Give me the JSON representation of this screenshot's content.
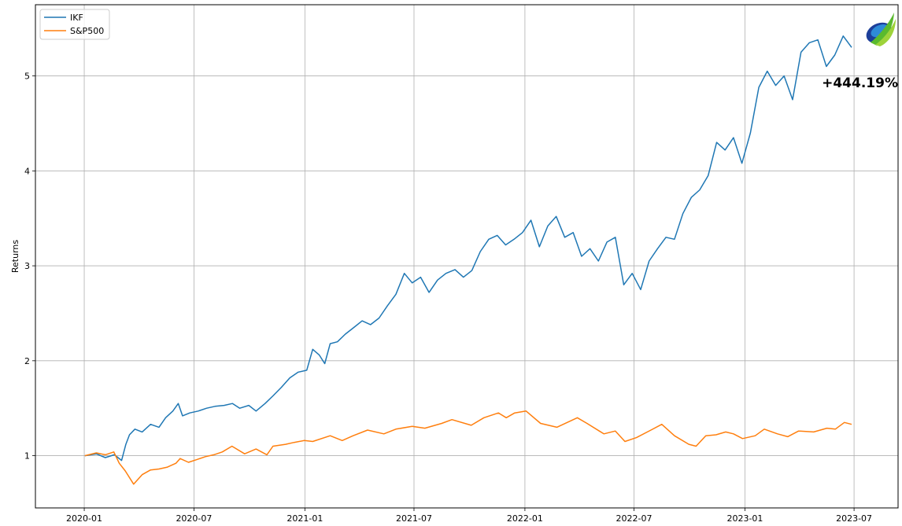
{
  "chart_data": {
    "type": "line",
    "title": "",
    "xlabel": "",
    "ylabel": "Returns",
    "x_type": "date",
    "xlim": [
      "2019-10-12",
      "2023-09-12"
    ],
    "ylim": [
      0.45,
      5.75
    ],
    "x_ticks": [
      "2020-01",
      "2020-07",
      "2021-01",
      "2021-07",
      "2022-01",
      "2022-07",
      "2023-01",
      "2023-07"
    ],
    "y_ticks": [
      1,
      2,
      3,
      4,
      5
    ],
    "grid": true,
    "legend": "top-left",
    "series": [
      {
        "name": "IKF",
        "color": "#1f77b4",
        "points": [
          [
            "2020-01-02",
            1.0
          ],
          [
            "2020-01-21",
            1.02
          ],
          [
            "2020-02-05",
            0.98
          ],
          [
            "2020-02-20",
            1.01
          ],
          [
            "2020-03-03",
            0.95
          ],
          [
            "2020-03-10",
            1.12
          ],
          [
            "2020-03-16",
            1.22
          ],
          [
            "2020-03-25",
            1.28
          ],
          [
            "2020-04-06",
            1.25
          ],
          [
            "2020-04-20",
            1.33
          ],
          [
            "2020-05-04",
            1.3
          ],
          [
            "2020-05-15",
            1.4
          ],
          [
            "2020-05-27",
            1.47
          ],
          [
            "2020-06-05",
            1.55
          ],
          [
            "2020-06-12",
            1.42
          ],
          [
            "2020-06-24",
            1.45
          ],
          [
            "2020-07-08",
            1.47
          ],
          [
            "2020-07-22",
            1.5
          ],
          [
            "2020-08-05",
            1.52
          ],
          [
            "2020-08-20",
            1.53
          ],
          [
            "2020-09-03",
            1.55
          ],
          [
            "2020-09-15",
            1.5
          ],
          [
            "2020-09-30",
            1.53
          ],
          [
            "2020-10-12",
            1.47
          ],
          [
            "2020-10-27",
            1.55
          ],
          [
            "2020-11-09",
            1.63
          ],
          [
            "2020-11-23",
            1.72
          ],
          [
            "2020-12-07",
            1.82
          ],
          [
            "2020-12-21",
            1.88
          ],
          [
            "2021-01-04",
            1.9
          ],
          [
            "2021-01-14",
            2.12
          ],
          [
            "2021-01-25",
            2.06
          ],
          [
            "2021-02-03",
            1.97
          ],
          [
            "2021-02-12",
            2.18
          ],
          [
            "2021-02-24",
            2.2
          ],
          [
            "2021-03-09",
            2.28
          ],
          [
            "2021-03-23",
            2.35
          ],
          [
            "2021-04-06",
            2.42
          ],
          [
            "2021-04-20",
            2.38
          ],
          [
            "2021-05-04",
            2.45
          ],
          [
            "2021-05-18",
            2.58
          ],
          [
            "2021-06-01",
            2.7
          ],
          [
            "2021-06-15",
            2.92
          ],
          [
            "2021-06-28",
            2.82
          ],
          [
            "2021-07-12",
            2.88
          ],
          [
            "2021-07-26",
            2.72
          ],
          [
            "2021-08-09",
            2.85
          ],
          [
            "2021-08-23",
            2.92
          ],
          [
            "2021-09-07",
            2.96
          ],
          [
            "2021-09-21",
            2.88
          ],
          [
            "2021-10-05",
            2.95
          ],
          [
            "2021-10-19",
            3.15
          ],
          [
            "2021-11-02",
            3.28
          ],
          [
            "2021-11-16",
            3.32
          ],
          [
            "2021-11-30",
            3.22
          ],
          [
            "2021-12-14",
            3.28
          ],
          [
            "2021-12-28",
            3.35
          ],
          [
            "2022-01-11",
            3.48
          ],
          [
            "2022-01-25",
            3.2
          ],
          [
            "2022-02-08",
            3.42
          ],
          [
            "2022-02-22",
            3.52
          ],
          [
            "2022-03-08",
            3.3
          ],
          [
            "2022-03-22",
            3.35
          ],
          [
            "2022-04-05",
            3.1
          ],
          [
            "2022-04-19",
            3.18
          ],
          [
            "2022-05-03",
            3.05
          ],
          [
            "2022-05-17",
            3.25
          ],
          [
            "2022-05-31",
            3.3
          ],
          [
            "2022-06-14",
            2.8
          ],
          [
            "2022-06-28",
            2.92
          ],
          [
            "2022-07-12",
            2.75
          ],
          [
            "2022-07-26",
            3.05
          ],
          [
            "2022-08-09",
            3.18
          ],
          [
            "2022-08-23",
            3.3
          ],
          [
            "2022-09-06",
            3.28
          ],
          [
            "2022-09-20",
            3.55
          ],
          [
            "2022-10-04",
            3.72
          ],
          [
            "2022-10-18",
            3.8
          ],
          [
            "2022-11-01",
            3.95
          ],
          [
            "2022-11-15",
            4.3
          ],
          [
            "2022-11-29",
            4.22
          ],
          [
            "2022-12-13",
            4.35
          ],
          [
            "2022-12-27",
            4.08
          ],
          [
            "2023-01-10",
            4.4
          ],
          [
            "2023-01-24",
            4.88
          ],
          [
            "2023-02-07",
            5.05
          ],
          [
            "2023-02-21",
            4.9
          ],
          [
            "2023-03-07",
            5.0
          ],
          [
            "2023-03-21",
            4.75
          ],
          [
            "2023-04-04",
            5.25
          ],
          [
            "2023-04-18",
            5.35
          ],
          [
            "2023-05-02",
            5.38
          ],
          [
            "2023-05-16",
            5.1
          ],
          [
            "2023-05-30",
            5.22
          ],
          [
            "2023-06-13",
            5.42
          ],
          [
            "2023-06-27",
            5.3
          ]
        ]
      },
      {
        "name": "S&P500",
        "color": "#ff7f0e",
        "points": [
          [
            "2020-01-02",
            1.0
          ],
          [
            "2020-01-21",
            1.03
          ],
          [
            "2020-02-05",
            1.01
          ],
          [
            "2020-02-19",
            1.04
          ],
          [
            "2020-02-28",
            0.92
          ],
          [
            "2020-03-09",
            0.84
          ],
          [
            "2020-03-23",
            0.7
          ],
          [
            "2020-04-06",
            0.8
          ],
          [
            "2020-04-20",
            0.85
          ],
          [
            "2020-05-04",
            0.86
          ],
          [
            "2020-05-18",
            0.88
          ],
          [
            "2020-06-01",
            0.92
          ],
          [
            "2020-06-08",
            0.97
          ],
          [
            "2020-06-22",
            0.93
          ],
          [
            "2020-07-06",
            0.96
          ],
          [
            "2020-07-20",
            0.99
          ],
          [
            "2020-08-03",
            1.01
          ],
          [
            "2020-08-17",
            1.04
          ],
          [
            "2020-09-02",
            1.1
          ],
          [
            "2020-09-23",
            1.02
          ],
          [
            "2020-10-12",
            1.07
          ],
          [
            "2020-10-30",
            1.01
          ],
          [
            "2020-11-09",
            1.1
          ],
          [
            "2020-11-30",
            1.12
          ],
          [
            "2020-12-14",
            1.14
          ],
          [
            "2020-12-31",
            1.16
          ],
          [
            "2021-01-14",
            1.15
          ],
          [
            "2021-02-12",
            1.21
          ],
          [
            "2021-03-04",
            1.16
          ],
          [
            "2021-03-22",
            1.21
          ],
          [
            "2021-04-15",
            1.27
          ],
          [
            "2021-05-12",
            1.23
          ],
          [
            "2021-06-01",
            1.28
          ],
          [
            "2021-06-28",
            1.31
          ],
          [
            "2021-07-19",
            1.29
          ],
          [
            "2021-08-16",
            1.34
          ],
          [
            "2021-09-02",
            1.38
          ],
          [
            "2021-10-04",
            1.32
          ],
          [
            "2021-10-25",
            1.4
          ],
          [
            "2021-11-18",
            1.45
          ],
          [
            "2021-12-01",
            1.4
          ],
          [
            "2021-12-15",
            1.45
          ],
          [
            "2022-01-03",
            1.47
          ],
          [
            "2022-01-27",
            1.34
          ],
          [
            "2022-02-23",
            1.3
          ],
          [
            "2022-03-29",
            1.4
          ],
          [
            "2022-04-14",
            1.34
          ],
          [
            "2022-05-12",
            1.23
          ],
          [
            "2022-05-31",
            1.26
          ],
          [
            "2022-06-16",
            1.15
          ],
          [
            "2022-07-05",
            1.19
          ],
          [
            "2022-07-29",
            1.27
          ],
          [
            "2022-08-16",
            1.33
          ],
          [
            "2022-09-06",
            1.21
          ],
          [
            "2022-09-30",
            1.12
          ],
          [
            "2022-10-12",
            1.1
          ],
          [
            "2022-10-28",
            1.21
          ],
          [
            "2022-11-14",
            1.22
          ],
          [
            "2022-11-30",
            1.25
          ],
          [
            "2022-12-13",
            1.23
          ],
          [
            "2022-12-28",
            1.18
          ],
          [
            "2023-01-18",
            1.21
          ],
          [
            "2023-02-02",
            1.28
          ],
          [
            "2023-02-24",
            1.23
          ],
          [
            "2023-03-13",
            1.2
          ],
          [
            "2023-03-31",
            1.26
          ],
          [
            "2023-04-25",
            1.25
          ],
          [
            "2023-05-17",
            1.29
          ],
          [
            "2023-05-31",
            1.28
          ],
          [
            "2023-06-15",
            1.35
          ],
          [
            "2023-06-27",
            1.33
          ]
        ]
      }
    ],
    "annotation": "+444.19%"
  },
  "logo": {
    "icon": "leaf-swoosh-logo-icon",
    "colors": [
      "#1d3f9a",
      "#2e8bd8",
      "#5aba2e",
      "#9ed33a"
    ]
  }
}
